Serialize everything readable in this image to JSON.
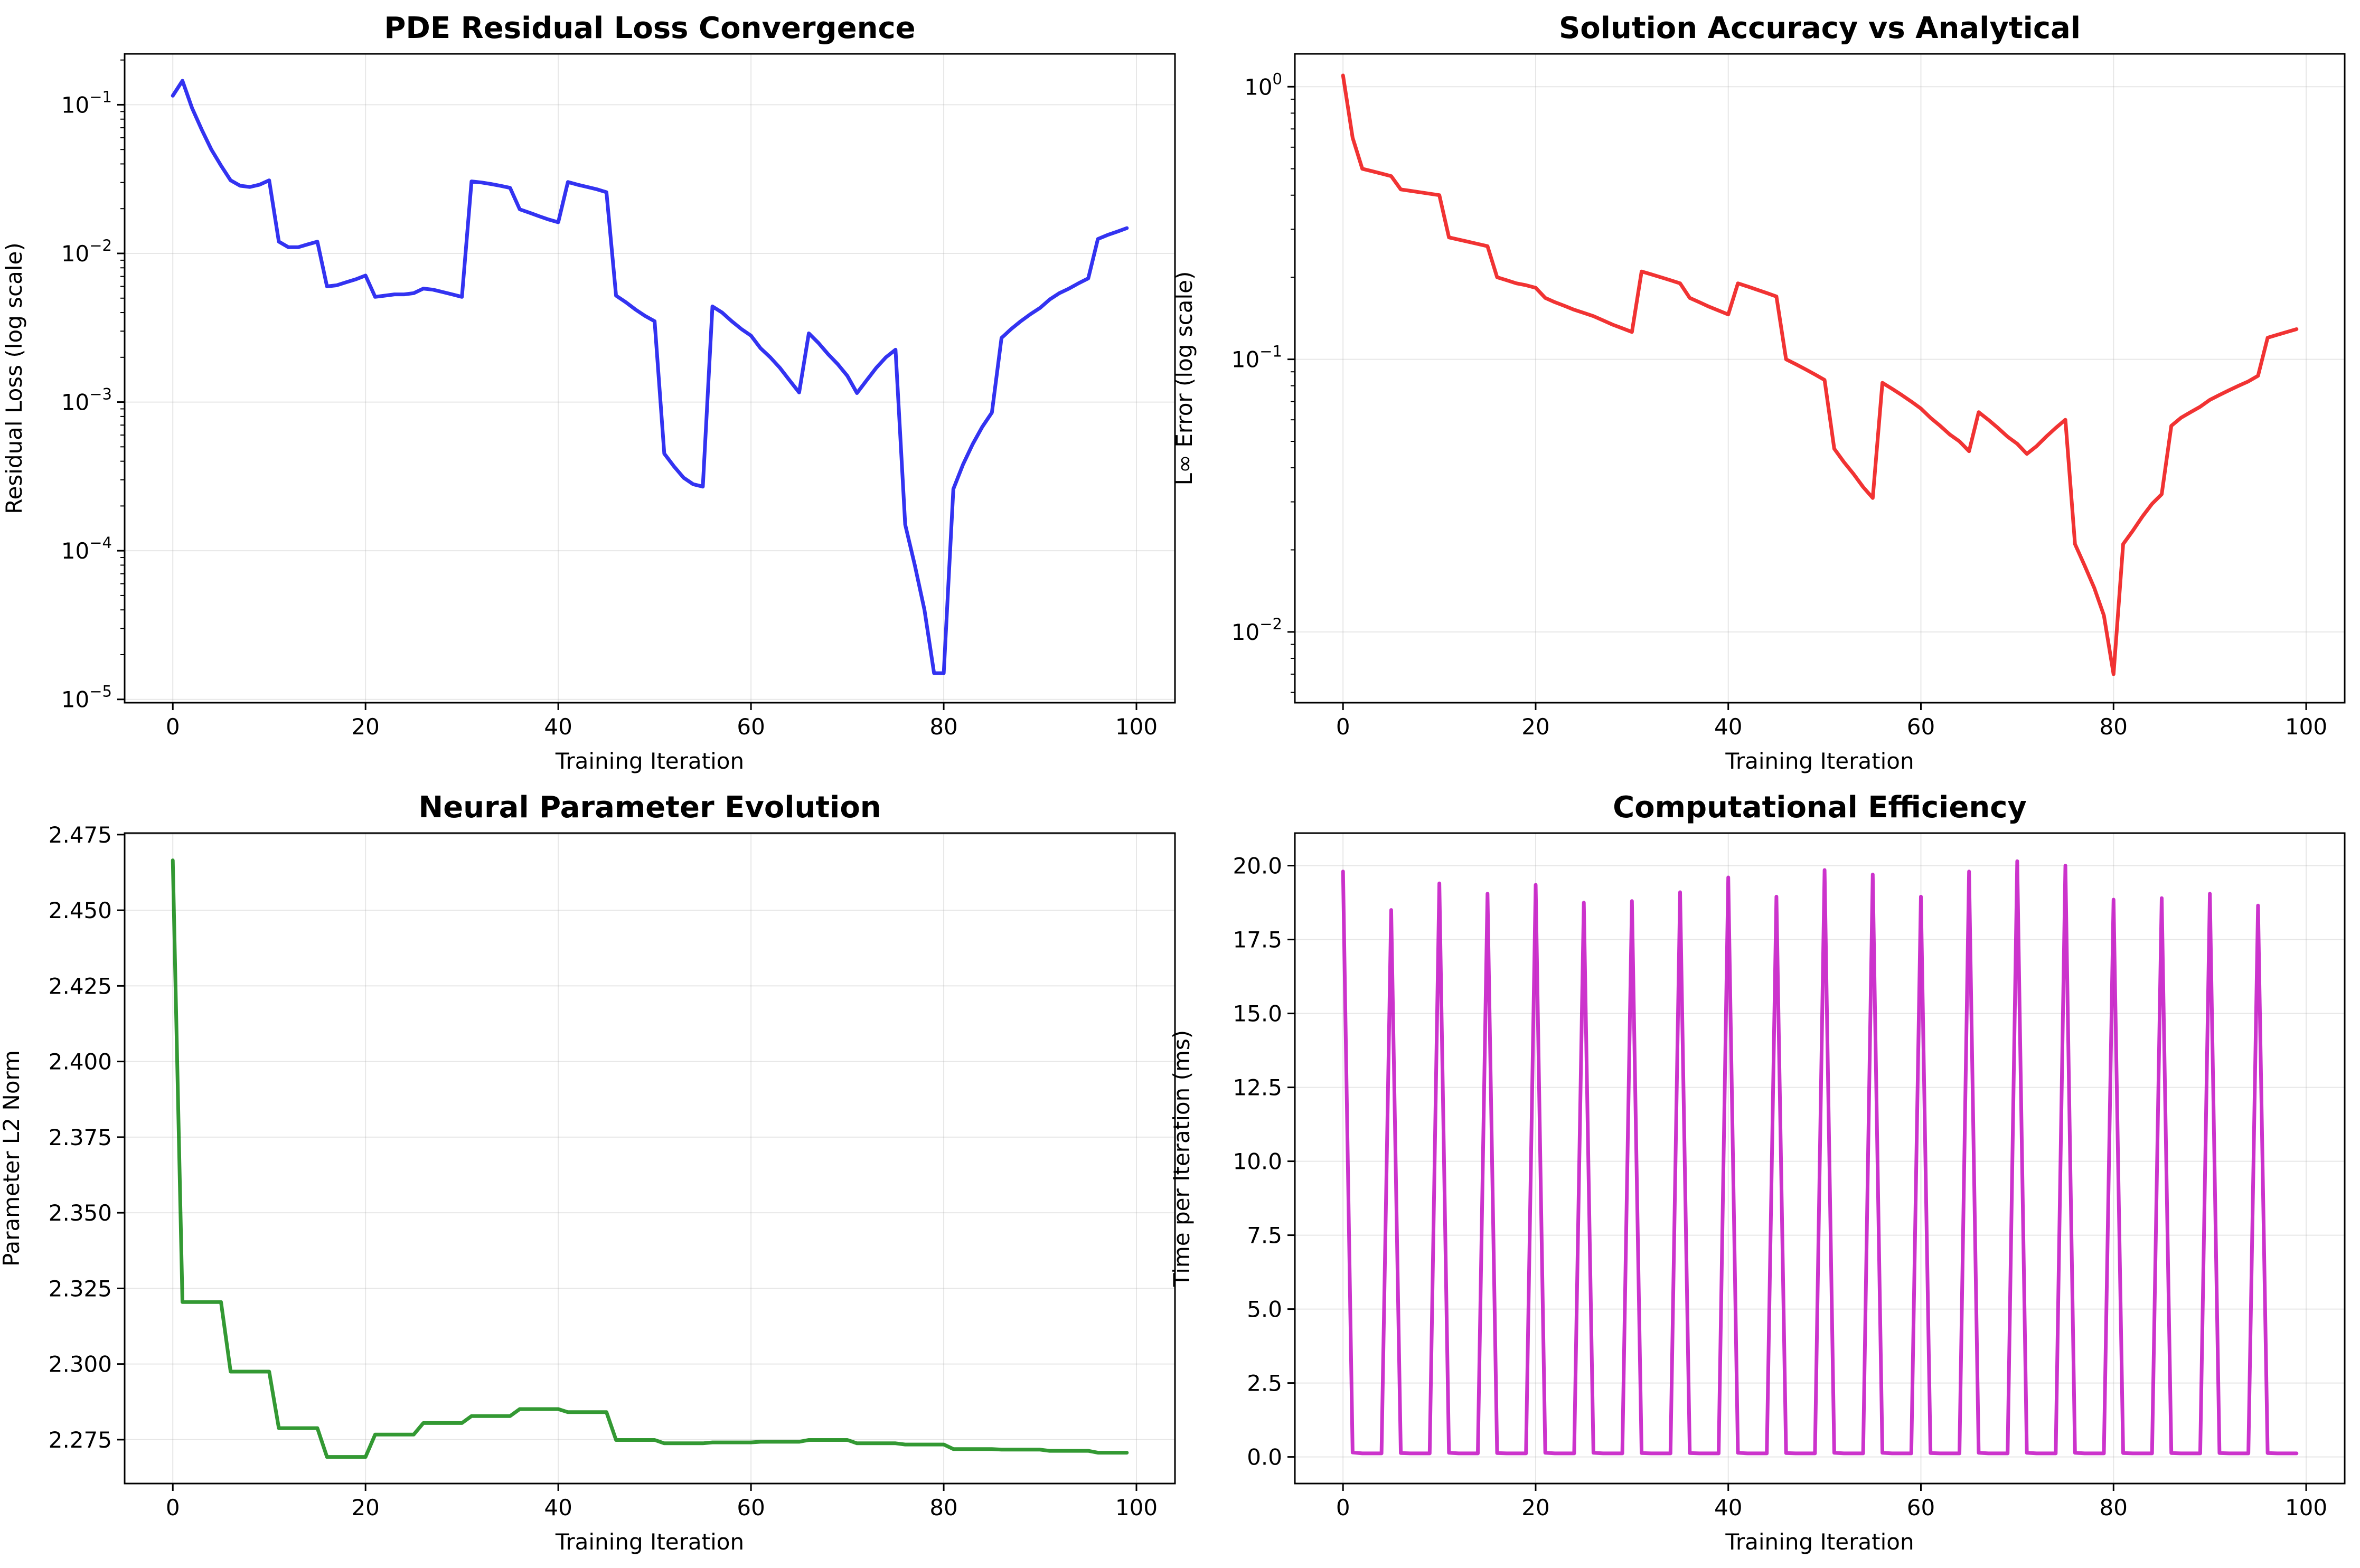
{
  "chart_data": [
    {
      "type": "line",
      "id": "residual-loss",
      "title": "PDE Residual Loss Convergence",
      "xlabel": "Training Iteration",
      "ylabel": "Residual Loss (log scale)",
      "yscale": "log",
      "xlim": [
        -5,
        104
      ],
      "ylim": [
        9.5e-06,
        0.22
      ],
      "xticks": [
        0,
        20,
        40,
        60,
        80,
        100
      ],
      "xtick_labels": [
        "0",
        "20",
        "40",
        "60",
        "80",
        "100"
      ],
      "ytick_decades": [
        -5,
        -4,
        -3,
        -2,
        -1
      ],
      "ytick_labels": [
        "10",
        "10",
        "10",
        "10",
        "10"
      ],
      "ytick_exponents": [
        "−5",
        "−4",
        "−3",
        "−2",
        "−1"
      ],
      "grid": true,
      "color": "#0000ee",
      "series": [
        {
          "name": "residual",
          "x": [
            0,
            1,
            2,
            3,
            4,
            5,
            6,
            7,
            8,
            9,
            10,
            11,
            12,
            13,
            14,
            15,
            16,
            17,
            18,
            19,
            20,
            21,
            22,
            23,
            24,
            25,
            26,
            27,
            28,
            29,
            30,
            31,
            32,
            33,
            34,
            35,
            36,
            37,
            38,
            39,
            40,
            41,
            42,
            43,
            44,
            45,
            46,
            47,
            48,
            49,
            50,
            51,
            52,
            53,
            54,
            55,
            56,
            57,
            58,
            59,
            60,
            61,
            62,
            63,
            64,
            65,
            66,
            67,
            68,
            69,
            70,
            71,
            72,
            73,
            74,
            75,
            76,
            77,
            78,
            79,
            80,
            81,
            82,
            83,
            84,
            85,
            86,
            87,
            88,
            89,
            90,
            91,
            92,
            93,
            94,
            95,
            96,
            97,
            98,
            99
          ],
          "values": [
            0.115,
            0.145,
            0.095,
            0.068,
            0.05,
            0.039,
            0.031,
            0.0285,
            0.028,
            0.029,
            0.031,
            0.012,
            0.011,
            0.011,
            0.0115,
            0.012,
            0.006,
            0.0061,
            0.0064,
            0.0067,
            0.0071,
            0.0051,
            0.0052,
            0.0053,
            0.0053,
            0.0054,
            0.0058,
            0.0057,
            0.0055,
            0.0053,
            0.0051,
            0.0305,
            0.03,
            0.0293,
            0.0285,
            0.0276,
            0.0198,
            0.0188,
            0.0178,
            0.0169,
            0.0162,
            0.0302,
            0.029,
            0.028,
            0.027,
            0.0258,
            0.0052,
            0.0047,
            0.0042,
            0.0038,
            0.0035,
            0.00045,
            0.00037,
            0.00031,
            0.00028,
            0.00027,
            0.0044,
            0.004,
            0.0035,
            0.0031,
            0.0028,
            0.0023,
            0.002,
            0.0017,
            0.0014,
            0.00116,
            0.0029,
            0.0025,
            0.0021,
            0.0018,
            0.0015,
            0.00115,
            0.0014,
            0.0017,
            0.002,
            0.00225,
            0.00015,
            8e-05,
            4e-05,
            1.5e-05,
            1.5e-05,
            0.00026,
            0.00038,
            0.00052,
            0.00068,
            0.00085,
            0.0027,
            0.0031,
            0.0035,
            0.0039,
            0.0043,
            0.0049,
            0.0054,
            0.0058,
            0.0063,
            0.0068,
            0.0125,
            0.0133,
            0.014,
            0.0148
          ]
        }
      ]
    },
    {
      "type": "line",
      "id": "solution-accuracy",
      "title": "Solution Accuracy vs Analytical",
      "xlabel": "Training Iteration",
      "ylabel": "L∞ Error (log scale)",
      "yscale": "log",
      "xlim": [
        -5,
        104
      ],
      "ylim": [
        0.0055,
        1.32
      ],
      "xticks": [
        0,
        20,
        40,
        60,
        80,
        100
      ],
      "xtick_labels": [
        "0",
        "20",
        "40",
        "60",
        "80",
        "100"
      ],
      "ytick_decades": [
        -2,
        -1,
        0
      ],
      "ytick_labels": [
        "10",
        "10",
        "10"
      ],
      "ytick_exponents": [
        "−2",
        "−1",
        "0"
      ],
      "grid": true,
      "color": "#ee0000",
      "series": [
        {
          "name": "linf_error",
          "x": [
            0,
            1,
            2,
            3,
            4,
            5,
            6,
            7,
            8,
            9,
            10,
            11,
            12,
            13,
            14,
            15,
            16,
            17,
            18,
            19,
            20,
            21,
            22,
            23,
            24,
            25,
            26,
            27,
            28,
            29,
            30,
            31,
            32,
            33,
            34,
            35,
            36,
            37,
            38,
            39,
            40,
            41,
            42,
            43,
            44,
            45,
            46,
            47,
            48,
            49,
            50,
            51,
            52,
            53,
            54,
            55,
            56,
            57,
            58,
            59,
            60,
            61,
            62,
            63,
            64,
            65,
            66,
            67,
            68,
            69,
            70,
            71,
            72,
            73,
            74,
            75,
            76,
            77,
            78,
            79,
            80,
            81,
            82,
            83,
            84,
            85,
            86,
            87,
            88,
            89,
            90,
            91,
            92,
            93,
            94,
            95,
            96,
            97,
            98,
            99
          ],
          "values": [
            1.1,
            0.65,
            0.5,
            0.49,
            0.48,
            0.47,
            0.42,
            0.415,
            0.41,
            0.405,
            0.4,
            0.28,
            0.275,
            0.27,
            0.265,
            0.26,
            0.2,
            0.195,
            0.19,
            0.187,
            0.183,
            0.168,
            0.162,
            0.157,
            0.152,
            0.148,
            0.144,
            0.139,
            0.134,
            0.13,
            0.126,
            0.21,
            0.205,
            0.2,
            0.195,
            0.19,
            0.168,
            0.162,
            0.156,
            0.151,
            0.146,
            0.19,
            0.185,
            0.18,
            0.175,
            0.17,
            0.1,
            0.096,
            0.092,
            0.088,
            0.084,
            0.047,
            0.042,
            0.038,
            0.034,
            0.031,
            0.082,
            0.078,
            0.074,
            0.07,
            0.066,
            0.061,
            0.057,
            0.053,
            0.05,
            0.046,
            0.064,
            0.06,
            0.056,
            0.052,
            0.049,
            0.045,
            0.048,
            0.052,
            0.056,
            0.06,
            0.021,
            0.0175,
            0.0145,
            0.0115,
            0.007,
            0.021,
            0.0235,
            0.0265,
            0.0295,
            0.032,
            0.057,
            0.061,
            0.064,
            0.067,
            0.071,
            0.074,
            0.077,
            0.08,
            0.083,
            0.087,
            0.12,
            0.123,
            0.126,
            0.129
          ]
        }
      ]
    },
    {
      "type": "line",
      "id": "parameter-evolution",
      "title": "Neural Parameter Evolution",
      "xlabel": "Training Iteration",
      "ylabel": "Parameter L2 Norm",
      "yscale": "linear",
      "xlim": [
        -5,
        104
      ],
      "ylim": [
        2.2605,
        2.4755
      ],
      "xticks": [
        0,
        20,
        40,
        60,
        80,
        100
      ],
      "xtick_labels": [
        "0",
        "20",
        "40",
        "60",
        "80",
        "100"
      ],
      "yticks": [
        2.275,
        2.3,
        2.325,
        2.35,
        2.375,
        2.4,
        2.425,
        2.45,
        2.475
      ],
      "ytick_labels": [
        "2.275",
        "2.300",
        "2.325",
        "2.350",
        "2.375",
        "2.400",
        "2.425",
        "2.450",
        "2.475"
      ],
      "grid": true,
      "color": "#008000",
      "series": [
        {
          "name": "l2_norm",
          "x": [
            0,
            1,
            2,
            3,
            4,
            5,
            6,
            7,
            8,
            9,
            10,
            11,
            12,
            13,
            14,
            15,
            16,
            17,
            18,
            19,
            20,
            21,
            22,
            23,
            24,
            25,
            26,
            27,
            28,
            29,
            30,
            31,
            32,
            33,
            34,
            35,
            36,
            37,
            38,
            39,
            40,
            41,
            42,
            43,
            44,
            45,
            46,
            47,
            48,
            49,
            50,
            51,
            52,
            53,
            54,
            55,
            56,
            57,
            58,
            59,
            60,
            61,
            62,
            63,
            64,
            65,
            66,
            67,
            68,
            69,
            70,
            71,
            72,
            73,
            74,
            75,
            76,
            77,
            78,
            79,
            80,
            81,
            82,
            83,
            84,
            85,
            86,
            87,
            88,
            89,
            90,
            91,
            92,
            93,
            94,
            95,
            96,
            97,
            98,
            99
          ],
          "values": [
            2.4665,
            2.3205,
            2.3205,
            2.3205,
            2.3205,
            2.3205,
            2.2975,
            2.2975,
            2.2975,
            2.2975,
            2.2975,
            2.2788,
            2.2788,
            2.2788,
            2.2788,
            2.2788,
            2.2693,
            2.2693,
            2.2693,
            2.2693,
            2.2693,
            2.2767,
            2.2767,
            2.2767,
            2.2767,
            2.2767,
            2.2805,
            2.2805,
            2.2805,
            2.2805,
            2.2805,
            2.2828,
            2.2828,
            2.2828,
            2.2828,
            2.2828,
            2.2851,
            2.2851,
            2.2851,
            2.2851,
            2.2851,
            2.2841,
            2.2841,
            2.2841,
            2.2841,
            2.2841,
            2.2749,
            2.2749,
            2.2749,
            2.2749,
            2.2749,
            2.2738,
            2.2738,
            2.2738,
            2.2738,
            2.2738,
            2.2741,
            2.2741,
            2.2741,
            2.2741,
            2.2741,
            2.2743,
            2.2743,
            2.2743,
            2.2743,
            2.2743,
            2.2749,
            2.2749,
            2.2749,
            2.2749,
            2.2749,
            2.2738,
            2.2738,
            2.2738,
            2.2738,
            2.2738,
            2.2734,
            2.2734,
            2.2734,
            2.2734,
            2.2734,
            2.2719,
            2.2719,
            2.2719,
            2.2719,
            2.2719,
            2.2717,
            2.2717,
            2.2717,
            2.2717,
            2.2717,
            2.2713,
            2.2713,
            2.2713,
            2.2713,
            2.2713,
            2.2707,
            2.2707,
            2.2707,
            2.2707
          ]
        }
      ]
    },
    {
      "type": "line",
      "id": "computational-efficiency",
      "title": "Computational Efficiency",
      "xlabel": "Training Iteration",
      "ylabel": "Time per Iteration (ms)",
      "yscale": "linear",
      "xlim": [
        -5,
        104
      ],
      "ylim": [
        -0.9,
        21.1
      ],
      "xticks": [
        0,
        20,
        40,
        60,
        80,
        100
      ],
      "xtick_labels": [
        "0",
        "20",
        "40",
        "60",
        "80",
        "100"
      ],
      "yticks": [
        0,
        2.5,
        5,
        7.5,
        10,
        12.5,
        15,
        17.5,
        20
      ],
      "ytick_labels": [
        "0.0",
        "2.5",
        "5.0",
        "7.5",
        "10.0",
        "12.5",
        "15.0",
        "17.5",
        "20.0"
      ],
      "grid": true,
      "color": "#bf00bf",
      "series": [
        {
          "name": "time_ms",
          "x": [
            0,
            1,
            2,
            3,
            4,
            5,
            6,
            7,
            8,
            9,
            10,
            11,
            12,
            13,
            14,
            15,
            16,
            17,
            18,
            19,
            20,
            21,
            22,
            23,
            24,
            25,
            26,
            27,
            28,
            29,
            30,
            31,
            32,
            33,
            34,
            35,
            36,
            37,
            38,
            39,
            40,
            41,
            42,
            43,
            44,
            45,
            46,
            47,
            48,
            49,
            50,
            51,
            52,
            53,
            54,
            55,
            56,
            57,
            58,
            59,
            60,
            61,
            62,
            63,
            64,
            65,
            66,
            67,
            68,
            69,
            70,
            71,
            72,
            73,
            74,
            75,
            76,
            77,
            78,
            79,
            80,
            81,
            82,
            83,
            84,
            85,
            86,
            87,
            88,
            89,
            90,
            91,
            92,
            93,
            94,
            95,
            96,
            97,
            98,
            99
          ],
          "values": [
            19.8,
            0.15,
            0.12,
            0.12,
            0.12,
            18.5,
            0.13,
            0.12,
            0.12,
            0.12,
            19.4,
            0.14,
            0.12,
            0.12,
            0.12,
            19.05,
            0.13,
            0.12,
            0.12,
            0.12,
            19.35,
            0.14,
            0.12,
            0.12,
            0.12,
            18.75,
            0.14,
            0.12,
            0.12,
            0.12,
            18.8,
            0.13,
            0.12,
            0.12,
            0.12,
            19.1,
            0.13,
            0.12,
            0.12,
            0.12,
            19.6,
            0.14,
            0.12,
            0.12,
            0.12,
            18.95,
            0.13,
            0.12,
            0.12,
            0.12,
            19.85,
            0.14,
            0.12,
            0.12,
            0.12,
            19.7,
            0.14,
            0.12,
            0.12,
            0.12,
            18.95,
            0.13,
            0.12,
            0.12,
            0.12,
            19.8,
            0.14,
            0.12,
            0.12,
            0.12,
            20.15,
            0.14,
            0.12,
            0.12,
            0.12,
            20.0,
            0.14,
            0.12,
            0.12,
            0.12,
            18.85,
            0.13,
            0.12,
            0.12,
            0.12,
            18.9,
            0.13,
            0.12,
            0.12,
            0.12,
            19.05,
            0.13,
            0.12,
            0.12,
            0.12,
            18.65,
            0.13,
            0.12,
            0.12,
            0.12
          ]
        }
      ]
    }
  ]
}
